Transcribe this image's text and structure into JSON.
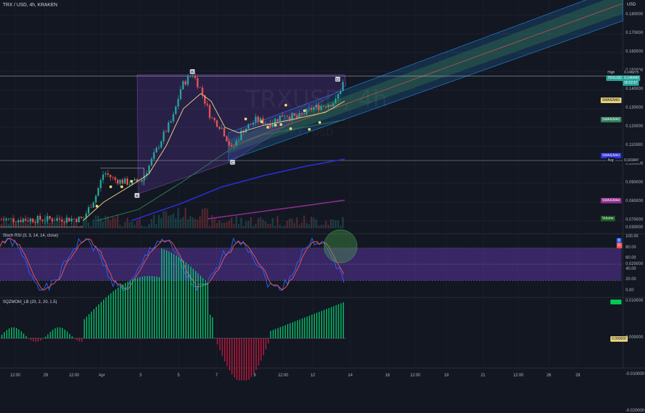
{
  "header": {
    "title": "TRX / USD, 4h, KRAKEN",
    "currency": "USD"
  },
  "watermark": {
    "main": "TRXUSD, 4h",
    "sub": "TRX / USD"
  },
  "chart_data": {
    "type": "candlestick",
    "price_axis": {
      "ticks": [
        0.07,
        0.08,
        0.09,
        0.1,
        0.11,
        0.12,
        0.13,
        0.14,
        0.15,
        0.16,
        0.17,
        0.18
      ],
      "tick_labels": [
        "0.070000",
        "0.080000",
        "0.090000",
        "0.100000",
        "0.110000",
        "0.120000",
        "0.130000",
        "0.140000",
        "0.150000",
        "0.160000",
        "0.170000",
        "0.180000"
      ]
    },
    "time_axis": {
      "labels": [
        "12:00",
        "29",
        "12:00",
        "Apr",
        "3",
        "5",
        "7",
        "9",
        "12:00",
        "12",
        "14",
        "16",
        "12:00",
        "19",
        "21",
        "12:00",
        "26",
        "28"
      ]
    },
    "markers": [
      "A",
      "B",
      "C",
      "D"
    ],
    "price_tags": [
      {
        "label": "High",
        "value": "0.149275",
        "kind": "high"
      },
      {
        "label": "TRXUSD",
        "value": "0.146440",
        "sub": "00:52:57",
        "kind": "last"
      },
      {
        "label": "SMA/EMA1",
        "value": "",
        "kind": "sma1"
      },
      {
        "label": "SMA/EMA2",
        "value": "",
        "kind": "sma2"
      },
      {
        "label": "SMA/EMA3",
        "value": "",
        "kind": "sma3"
      },
      {
        "label": "Avg",
        "value": "0.101947",
        "kind": "avg"
      },
      {
        "label": "SMA/EMA4",
        "value": "",
        "kind": "sma4"
      },
      {
        "label": "Volume",
        "value": "",
        "kind": "vol"
      }
    ],
    "stoch_rsi": {
      "title": "Stoch RSI (3, 3, 14, 14, close)",
      "ticks": [
        0,
        20,
        40,
        60,
        80,
        100
      ],
      "tick_labels": [
        "0.00",
        "20.00",
        "40.00",
        "60.00",
        "80.00",
        "100.00"
      ],
      "upper_band": 80,
      "lower_band": 20,
      "k_label": "K",
      "d_label": "D"
    },
    "sqzmom": {
      "title": "SQZMOM_LB (20, 2, 20, 1.5)",
      "ticks": [
        -0.02,
        -0.01,
        0,
        0.01,
        0.02,
        0.03
      ],
      "tick_labels": [
        "-0.020000",
        "-0.010000",
        "0.000000",
        "0.010000",
        "0.020000",
        "0.030000"
      ],
      "last_tag": "0.000000"
    }
  },
  "colors": {
    "bg": "#131722",
    "up": "#26a69a",
    "down": "#ef5350",
    "stoch_k": "#2962ff",
    "stoch_d": "#ef5350",
    "band_fill": "#673ab7",
    "sma1": "#e6d27c",
    "sma2": "#2e7d5b",
    "sma3": "#2a2fd8",
    "sma4": "#8e2c8e"
  }
}
